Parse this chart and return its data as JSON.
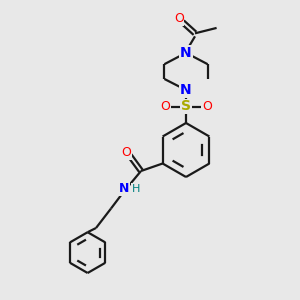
{
  "background_color": "#e8e8e8",
  "bond_color": "#1a1a1a",
  "N_color": "#0000ff",
  "O_color": "#ff0000",
  "S_color": "#aaaa00",
  "H_color": "#008080",
  "line_width": 1.6,
  "fig_size": [
    3.0,
    3.0
  ],
  "dpi": 100,
  "xlim": [
    0,
    10
  ],
  "ylim": [
    0,
    10
  ]
}
